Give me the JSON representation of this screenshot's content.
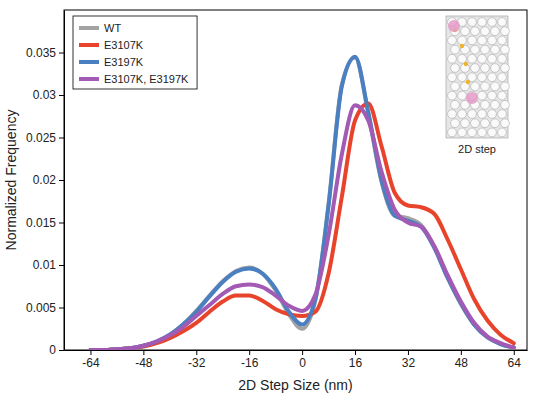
{
  "chart_data": {
    "type": "line",
    "x_label": "2D Step Size (nm)",
    "y_label": "Normalized Frequency",
    "annotation": "2D step",
    "legend": "upper left",
    "xlim": [
      -72,
      68
    ],
    "xticks": [
      -64,
      -48,
      -32,
      -16,
      0,
      16,
      32,
      48,
      64
    ],
    "ylim": [
      0,
      0.04
    ],
    "yticks": [
      0,
      0.005,
      0.01,
      0.015,
      0.02,
      0.025,
      0.03,
      0.035
    ],
    "x": [
      -64,
      -60,
      -56,
      -52,
      -48,
      -44,
      -40,
      -36,
      -32,
      -28,
      -24,
      -20,
      -16,
      -12,
      -8,
      -4,
      0,
      4,
      8,
      12,
      16,
      20,
      24,
      28,
      32,
      36,
      40,
      44,
      48,
      52,
      56,
      60,
      64
    ],
    "series": [
      {
        "name": "WT",
        "color": "#a3a3a3",
        "values": [
          0,
          0,
          0.0001,
          0.0002,
          0.0005,
          0.001,
          0.0018,
          0.003,
          0.0046,
          0.0064,
          0.0081,
          0.0093,
          0.0097,
          0.009,
          0.007,
          0.0042,
          0.0025,
          0.0058,
          0.0172,
          0.0312,
          0.0344,
          0.0278,
          0.0198,
          0.0158,
          0.0155,
          0.0147,
          0.0121,
          0.0085,
          0.0054,
          0.003,
          0.0015,
          0.0007,
          0.0003
        ]
      },
      {
        "name": "E3107K",
        "color": "#e8432b",
        "values": [
          0,
          0,
          0.0001,
          0.0002,
          0.0004,
          0.0008,
          0.0014,
          0.0022,
          0.0032,
          0.0045,
          0.0057,
          0.0064,
          0.0064,
          0.0058,
          0.0048,
          0.0042,
          0.004,
          0.0045,
          0.009,
          0.018,
          0.027,
          0.029,
          0.024,
          0.0185,
          0.017,
          0.0168,
          0.016,
          0.013,
          0.0095,
          0.006,
          0.0035,
          0.0018,
          0.0008
        ]
      },
      {
        "name": "E3197K",
        "color": "#4a7fc1",
        "values": [
          0,
          0,
          0.0001,
          0.0002,
          0.0005,
          0.001,
          0.0018,
          0.003,
          0.0045,
          0.0063,
          0.008,
          0.0092,
          0.0096,
          0.009,
          0.0072,
          0.0045,
          0.003,
          0.006,
          0.017,
          0.031,
          0.0345,
          0.028,
          0.02,
          0.0158,
          0.0152,
          0.0145,
          0.012,
          0.0085,
          0.0055,
          0.003,
          0.0015,
          0.0007,
          0.0003
        ]
      },
      {
        "name": "E3107K, E3197K",
        "color": "#a35ab4",
        "values": [
          0,
          0,
          0.0001,
          0.0002,
          0.0005,
          0.001,
          0.0017,
          0.0027,
          0.004,
          0.0053,
          0.0066,
          0.0075,
          0.0077,
          0.0074,
          0.0064,
          0.0052,
          0.0046,
          0.0065,
          0.0135,
          0.023,
          0.0288,
          0.027,
          0.021,
          0.0165,
          0.015,
          0.0145,
          0.0122,
          0.0088,
          0.0057,
          0.0032,
          0.0016,
          0.0008,
          0.0003
        ]
      }
    ]
  }
}
